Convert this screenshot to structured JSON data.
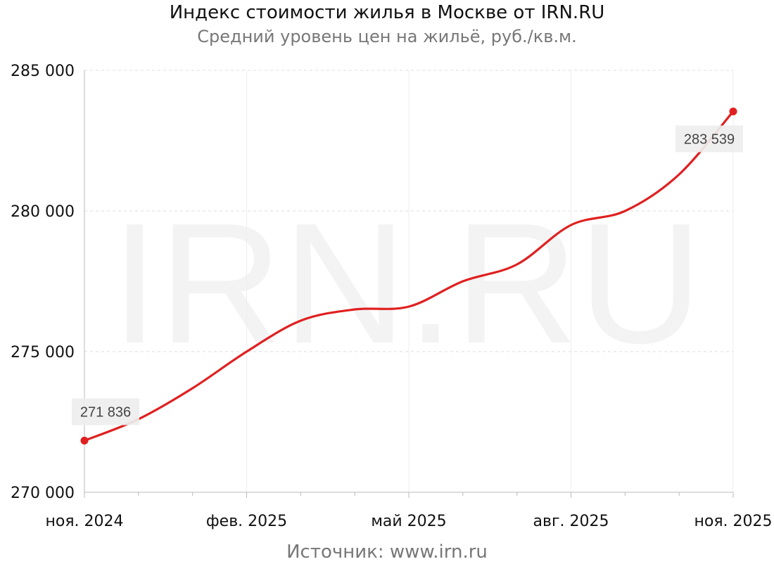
{
  "header": {
    "title": "Индекс стоимости жилья в Москве от IRN.RU",
    "subtitle": "Средний уровень цен на жильё, руб./кв.м."
  },
  "footer": {
    "source": "Источник:  www.irn.ru"
  },
  "watermark": "IRN.RU",
  "colors": {
    "line": "#e02020",
    "grid": "#dddddd",
    "axis": "#bbbbbb",
    "label_box": "#eeeeee"
  },
  "chart_data": {
    "type": "line",
    "title": "Индекс стоимости жилья в Москве от IRN.RU",
    "subtitle": "Средний уровень цен на жильё, руб./кв.м.",
    "xlabel": "",
    "ylabel": "",
    "ylim": [
      270000,
      285000
    ],
    "yticks": [
      270000,
      275000,
      280000,
      285000
    ],
    "ytick_labels": [
      "270 000",
      "275 000",
      "280 000",
      "285 000"
    ],
    "xlim": [
      "2024-11",
      "2025-11"
    ],
    "xtick_labels": [
      "ноя. 2024",
      "фев. 2025",
      "май 2025",
      "авг. 2025",
      "ноя. 2025"
    ],
    "xtick_positions": [
      "2024-11",
      "2025-02",
      "2025-05",
      "2025-08",
      "2025-11"
    ],
    "grid": true,
    "legend": "none",
    "series": [
      {
        "x": [
          "2024-11",
          "2024-12",
          "2025-01",
          "2025-02",
          "2025-03",
          "2025-04",
          "2025-05",
          "2025-06",
          "2025-07",
          "2025-08",
          "2025-09",
          "2025-10",
          "2025-11"
        ],
        "values": [
          271836,
          272600,
          273700,
          275000,
          276100,
          276500,
          276600,
          277500,
          278100,
          279500,
          280000,
          281300,
          283539
        ]
      }
    ],
    "annotations": [
      {
        "x": "2024-11",
        "value": 271836,
        "text": "271 836"
      },
      {
        "x": "2025-11",
        "value": 283539,
        "text": "283 539"
      }
    ]
  }
}
